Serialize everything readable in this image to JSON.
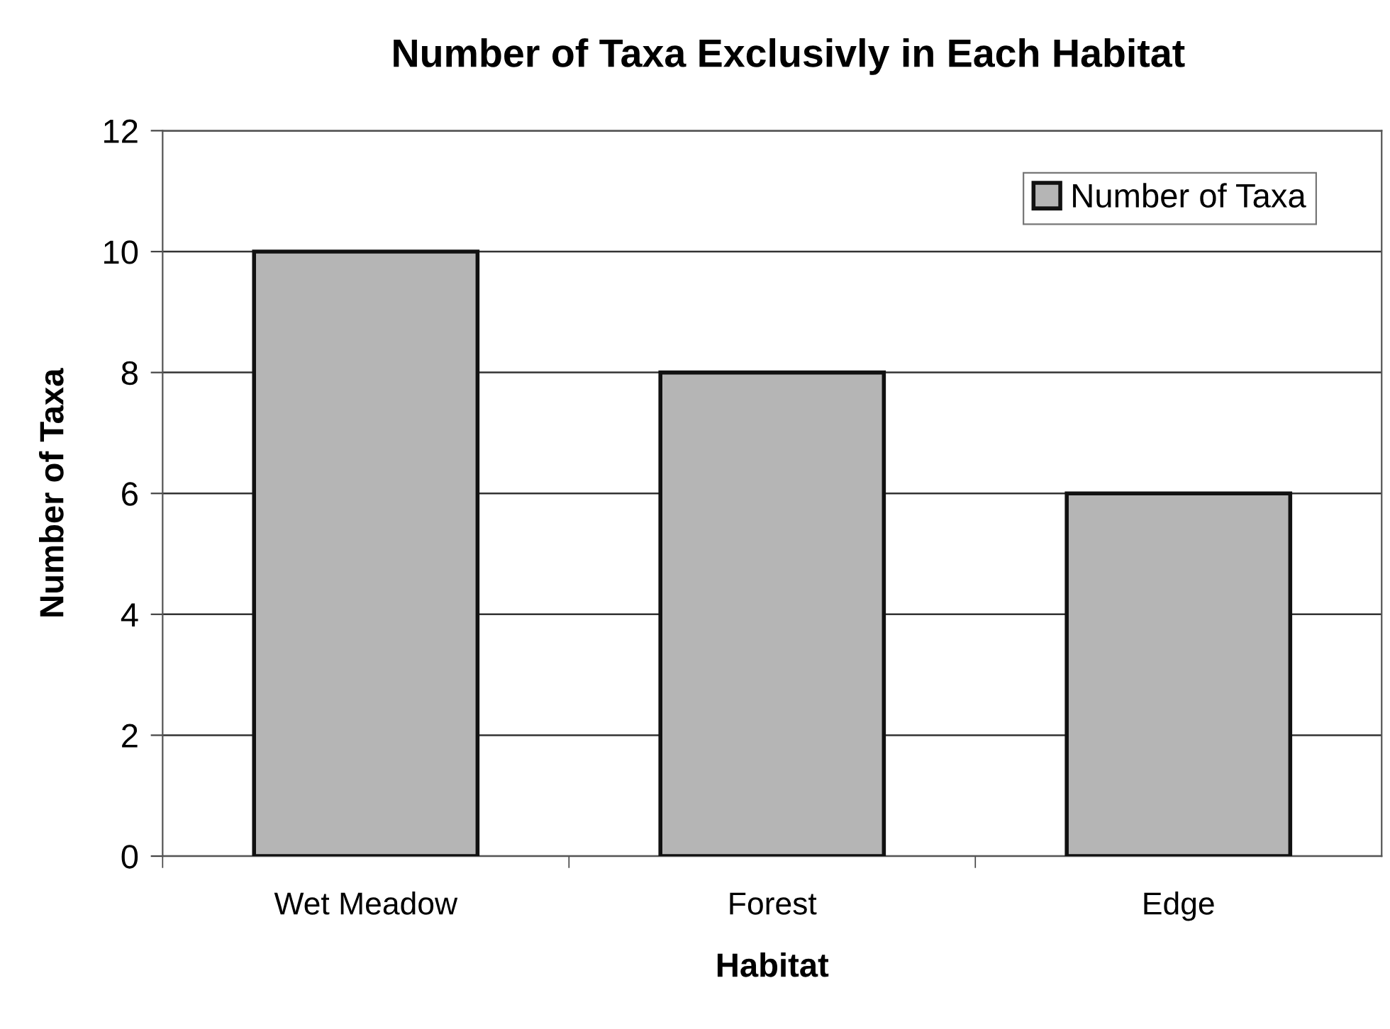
{
  "chart_data": {
    "type": "bar",
    "title": "Number of Taxa Exclusivly in Each Habitat",
    "xlabel": "Habitat",
    "ylabel": "Number of Taxa",
    "categories": [
      "Wet Meadow",
      "Forest",
      "Edge"
    ],
    "series": [
      {
        "name": "Number of Taxa",
        "color": "#b5b5b5",
        "values": [
          10,
          8,
          6
        ]
      }
    ],
    "ylim": [
      0,
      12
    ],
    "yticks": [
      0,
      2,
      4,
      6,
      8,
      10,
      12
    ],
    "grid": "y",
    "legend": "top right"
  }
}
